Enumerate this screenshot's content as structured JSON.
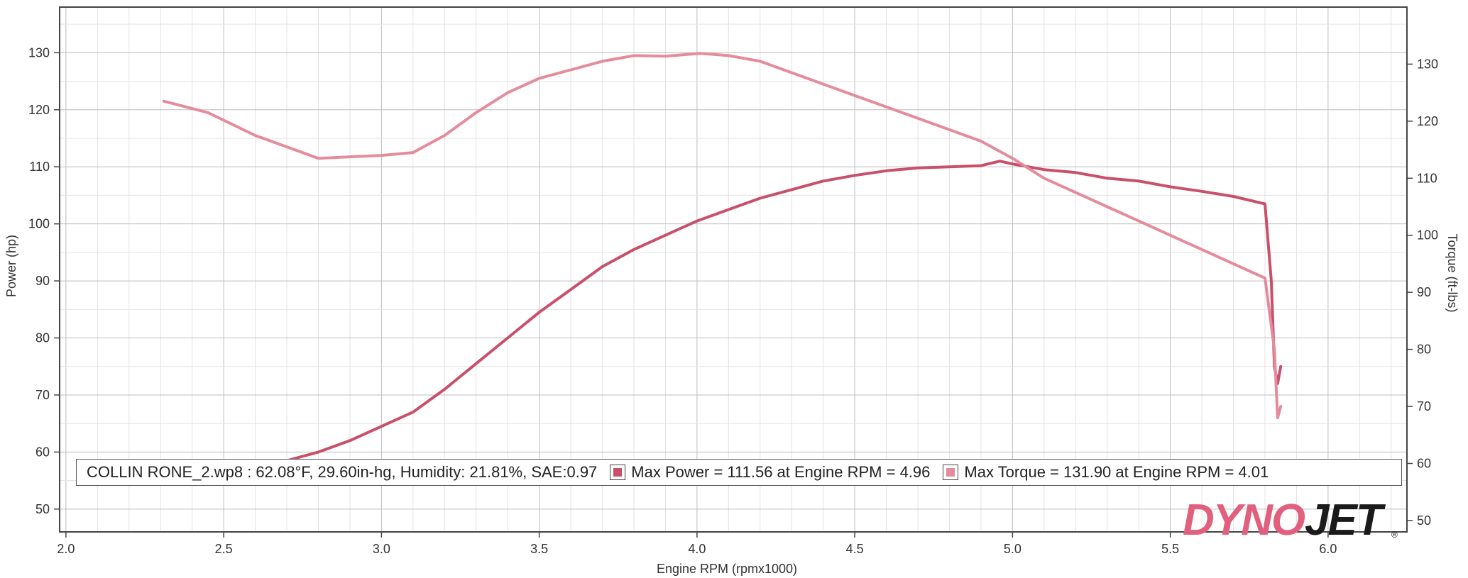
{
  "chart_data": {
    "type": "line",
    "title": "",
    "xlabel": "Engine RPM (rpmx1000)",
    "ylabel_left": "Power (hp)",
    "ylabel_right": "Torque (ft-lbs)",
    "xlim": [
      1.98,
      6.25
    ],
    "ylim_left": [
      46,
      138
    ],
    "ylim_right": [
      48,
      140
    ],
    "x_ticks": [
      "2.0",
      "2.5",
      "3.0",
      "3.5",
      "4.0",
      "4.5",
      "5.0",
      "5.5",
      "6.0"
    ],
    "y_ticks_left": [
      "50",
      "60",
      "70",
      "80",
      "90",
      "100",
      "110",
      "120",
      "130"
    ],
    "y_ticks_right": [
      "50",
      "60",
      "70",
      "80",
      "90",
      "100",
      "110",
      "120",
      "130"
    ],
    "grid": true,
    "series": [
      {
        "name": "Max Power",
        "axis": "left",
        "color": "#c8506a",
        "x": [
          2.31,
          2.5,
          2.7,
          2.8,
          2.9,
          3.0,
          3.1,
          3.2,
          3.3,
          3.4,
          3.5,
          3.6,
          3.7,
          3.8,
          3.9,
          4.0,
          4.1,
          4.2,
          4.3,
          4.4,
          4.5,
          4.6,
          4.7,
          4.8,
          4.9,
          4.96,
          5.0,
          5.1,
          5.2,
          5.3,
          5.4,
          5.5,
          5.6,
          5.7,
          5.8,
          5.82,
          5.83,
          5.84,
          5.85
        ],
        "y": [
          54.5,
          56.5,
          58.5,
          60.0,
          62.0,
          64.5,
          67.0,
          71.0,
          75.5,
          80.0,
          84.5,
          88.5,
          92.5,
          95.5,
          98.0,
          100.5,
          102.5,
          104.5,
          106.0,
          107.5,
          108.5,
          109.3,
          109.8,
          110.0,
          110.2,
          111.0,
          110.5,
          109.5,
          109.0,
          108.0,
          107.5,
          106.5,
          105.7,
          104.8,
          103.5,
          90.0,
          75.0,
          72.0,
          75.0
        ]
      },
      {
        "name": "Max Torque",
        "axis": "right",
        "color": "#e48c9c",
        "x": [
          2.31,
          2.45,
          2.6,
          2.8,
          3.0,
          3.1,
          3.2,
          3.3,
          3.4,
          3.5,
          3.6,
          3.7,
          3.8,
          3.9,
          4.01,
          4.1,
          4.2,
          4.3,
          4.4,
          4.5,
          4.6,
          4.7,
          4.8,
          4.9,
          5.0,
          5.1,
          5.2,
          5.3,
          5.4,
          5.5,
          5.6,
          5.7,
          5.8,
          5.83,
          5.84,
          5.85
        ],
        "y": [
          123.5,
          121.5,
          117.5,
          113.5,
          114.0,
          114.5,
          117.5,
          121.5,
          125.0,
          127.5,
          129.0,
          130.5,
          131.5,
          131.4,
          131.9,
          131.5,
          130.5,
          128.5,
          126.5,
          124.5,
          122.5,
          120.5,
          118.5,
          116.5,
          113.5,
          110.0,
          107.5,
          105.0,
          102.5,
          100.0,
          97.5,
          95.0,
          92.5,
          80.0,
          68.0,
          70.0
        ]
      }
    ]
  },
  "legend": {
    "run_info": "COLLIN RONE_2.wp8 : 62.08°F, 29.60in-hg, Humidity: 21.81%, SAE:0.97",
    "power": "Max Power = 111.56 at Engine RPM = 4.96",
    "torque": "Max Torque = 131.90 at Engine RPM = 4.01"
  },
  "brand": "DYNOJET",
  "colors": {
    "power": "#c8506a",
    "torque": "#e48c9c",
    "logo_pink": "#e0607e",
    "logo_dark": "#1a1a1a"
  }
}
